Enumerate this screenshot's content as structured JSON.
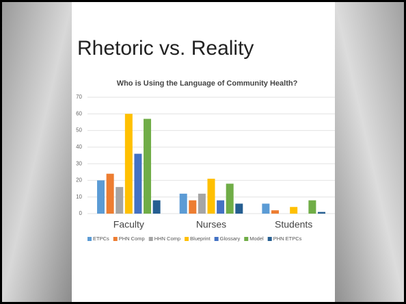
{
  "chart_data": {
    "type": "bar",
    "heading": "Rhetoric vs. Reality",
    "title": "Who is Using the Language of Community Health?",
    "categories": [
      "Faculty",
      "Nurses",
      "Students"
    ],
    "series": [
      {
        "name": "ETPCs",
        "color": "#5b9bd5",
        "values": [
          20,
          12,
          6
        ]
      },
      {
        "name": "PHN Comp",
        "color": "#ed7d31",
        "values": [
          24,
          8,
          2
        ]
      },
      {
        "name": "HHN Comp",
        "color": "#a5a5a5",
        "values": [
          16,
          12,
          0
        ]
      },
      {
        "name": "Blueprint",
        "color": "#ffc000",
        "values": [
          60,
          21,
          4
        ]
      },
      {
        "name": "Glossary",
        "color": "#4472c4",
        "values": [
          36,
          8,
          0
        ]
      },
      {
        "name": "Model",
        "color": "#70ad47",
        "values": [
          57,
          18,
          8
        ]
      },
      {
        "name": "PHN ETPCs",
        "color": "#255e91",
        "values": [
          8,
          6,
          1
        ]
      }
    ],
    "ylim": [
      0,
      70
    ],
    "yticks": [
      0,
      10,
      20,
      30,
      40,
      50,
      60,
      70
    ],
    "grid": true,
    "legend": "bottom"
  }
}
